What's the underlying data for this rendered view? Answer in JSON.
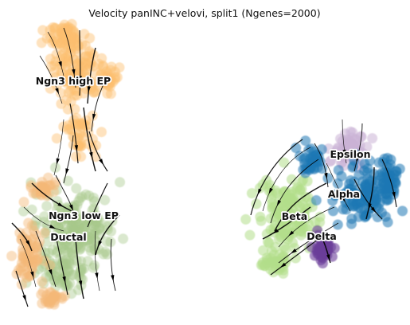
{
  "chart_data": {
    "type": "scatter",
    "title": "Velocity panINC+velovi, split1 (Ngenes=2000)",
    "xlabel": "",
    "ylabel": "",
    "grid": false,
    "legend": "on data",
    "clusters": [
      {
        "name": "Ngn3 high EP",
        "color": "#fdbf6f"
      },
      {
        "name": "Ngn3 low EP",
        "color": "#a6c78a"
      },
      {
        "name": "Ductal",
        "color": "#f5b878"
      },
      {
        "name": "Beta",
        "color": "#b2df8a"
      },
      {
        "name": "Alpha",
        "color": "#1f78b4"
      },
      {
        "name": "Delta",
        "color": "#6a3d9a"
      },
      {
        "name": "Epsilon",
        "color": "#cab2d6"
      }
    ],
    "stream_color": "#000000"
  }
}
